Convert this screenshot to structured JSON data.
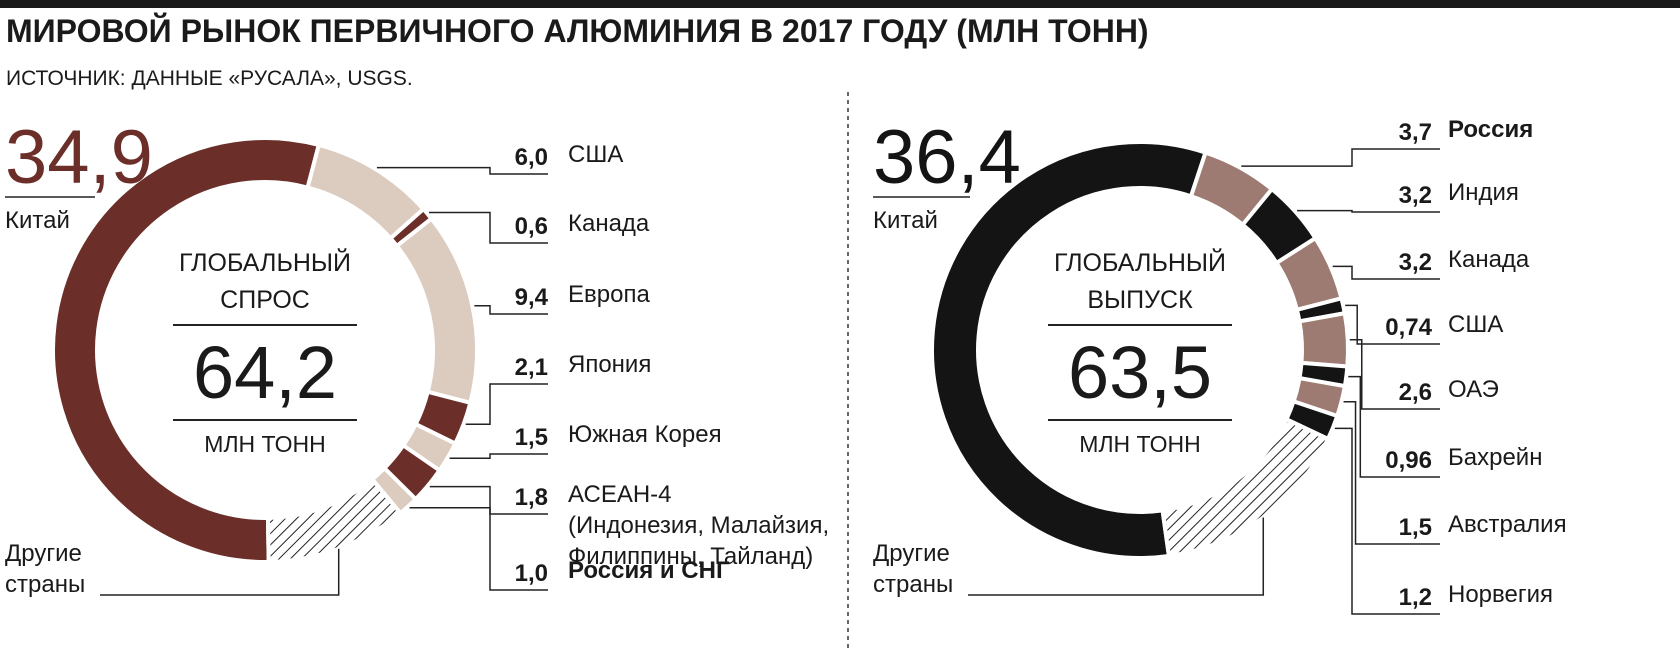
{
  "title": "МИРОВОЙ РЫНОК ПЕРВИЧНОГО АЛЮМИНИЯ В 2017 ГОДУ (МЛН ТОНН)",
  "source": "ИСТОЧНИК:  ДАННЫЕ «РУСАЛА», USGS.",
  "chart_data": [
    {
      "type": "donut",
      "center_text": "ГЛОБАЛЬНЫЙ\nСПРОС",
      "total": "64,2",
      "unit": "МЛН ТОНН",
      "categories": [
        "Китай",
        "США",
        "Канада",
        "Европа",
        "Япония",
        "Южная Корея",
        "АСЕАН-4\n(Индонезия, Малайзия,\nФилиппины, Тайланд)",
        "Россия и СНГ",
        "Другие\nстраны"
      ],
      "values": [
        34.9,
        6.0,
        0.6,
        9.4,
        2.1,
        1.5,
        1.8,
        1.0,
        6.9
      ],
      "value_labels": [
        "34,9",
        "6,0",
        "0,6",
        "9,4",
        "2,1",
        "1,5",
        "1,8",
        "1,0",
        null
      ],
      "colors": [
        "#6b2e29",
        "#dccbbf",
        "#6b2e29",
        "#dccbbf",
        "#6b2e29",
        "#dccbbf",
        "#6b2e29",
        "#dccbbf",
        "hatch"
      ]
    },
    {
      "type": "donut",
      "center_text": "ГЛОБАЛЬНЫЙ\nВЫПУСК",
      "total": "63,5",
      "unit": "МЛН ТОНН",
      "categories": [
        "Китай",
        "Россия",
        "Индия",
        "Канада",
        "США",
        "ОАЭ",
        "Бахрейн",
        "Австралия",
        "Норвегия",
        "Другие\nстраны"
      ],
      "values": [
        36.4,
        3.7,
        3.2,
        3.2,
        0.74,
        2.6,
        0.96,
        1.5,
        1.2,
        10.0
      ],
      "value_labels": [
        "36,4",
        "3,7",
        "3,2",
        "3,2",
        "0,74",
        "2,6",
        "0,96",
        "1,5",
        "1,2",
        null
      ],
      "colors": [
        "#141414",
        "#9e7b72",
        "#141414",
        "#9e7b72",
        "#141414",
        "#9e7b72",
        "#141414",
        "#9e7b72",
        "#141414",
        "hatch"
      ]
    }
  ]
}
